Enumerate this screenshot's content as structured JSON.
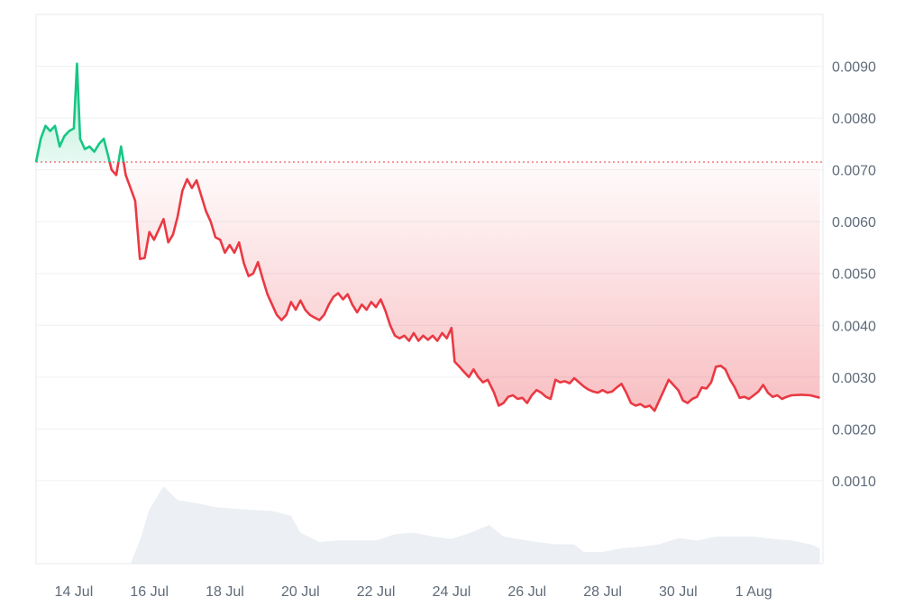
{
  "chart_data": {
    "type": "area",
    "title": "",
    "xlabel": "",
    "ylabel": "",
    "x_ticks": [
      "14 Jul",
      "16 Jul",
      "18 Jul",
      "20 Jul",
      "22 Jul",
      "24 Jul",
      "26 Jul",
      "28 Jul",
      "30 Jul",
      "1 Aug"
    ],
    "y_ticks": [
      "0.0010",
      "0.0020",
      "0.0030",
      "0.0040",
      "0.0050",
      "0.0060",
      "0.0070",
      "0.0080",
      "0.0090"
    ],
    "ylim": [
      -0.0006,
      0.01
    ],
    "xlim": [
      "2024-07-13",
      "2024-08-02T20:00"
    ],
    "y_axis_position": "right",
    "grid": true,
    "baseline": 0.00715,
    "colors": {
      "above": "#16c784",
      "below": "#ea3943",
      "volume": "#e4e8ee",
      "grid": "#eef0f3",
      "baseline": "#ea3943"
    },
    "series": [
      {
        "values": [
          [
            "2024-07-13T00:00",
            0.00715
          ],
          [
            "2024-07-13T03:00",
            0.0076
          ],
          [
            "2024-07-13T06:00",
            0.00785
          ],
          [
            "2024-07-13T09:00",
            0.00775
          ],
          [
            "2024-07-13T12:00",
            0.00785
          ],
          [
            "2024-07-13T15:00",
            0.00745
          ],
          [
            "2024-07-13T18:00",
            0.00765
          ],
          [
            "2024-07-13T21:00",
            0.00775
          ],
          [
            "2024-07-14T00:00",
            0.0078
          ],
          [
            "2024-07-14T02:00",
            0.00905
          ],
          [
            "2024-07-14T04:00",
            0.0076
          ],
          [
            "2024-07-14T07:00",
            0.0074
          ],
          [
            "2024-07-14T10:00",
            0.00745
          ],
          [
            "2024-07-14T13:00",
            0.00735
          ],
          [
            "2024-07-14T16:00",
            0.0075
          ],
          [
            "2024-07-14T19:00",
            0.0076
          ],
          [
            "2024-07-14T22:00",
            0.00725
          ],
          [
            "2024-07-15T00:00",
            0.007
          ],
          [
            "2024-07-15T03:00",
            0.0069
          ],
          [
            "2024-07-15T06:00",
            0.00745
          ],
          [
            "2024-07-15T09:00",
            0.0069
          ],
          [
            "2024-07-15T12:00",
            0.00665
          ],
          [
            "2024-07-15T15:00",
            0.0064
          ],
          [
            "2024-07-15T18:00",
            0.00528
          ],
          [
            "2024-07-15T21:00",
            0.0053
          ],
          [
            "2024-07-16T00:00",
            0.0058
          ],
          [
            "2024-07-16T03:00",
            0.00565
          ],
          [
            "2024-07-16T06:00",
            0.00585
          ],
          [
            "2024-07-16T09:00",
            0.00605
          ],
          [
            "2024-07-16T12:00",
            0.0056
          ],
          [
            "2024-07-16T15:00",
            0.00575
          ],
          [
            "2024-07-16T18:00",
            0.0061
          ],
          [
            "2024-07-16T21:00",
            0.0066
          ],
          [
            "2024-07-17T00:00",
            0.00682
          ],
          [
            "2024-07-17T03:00",
            0.00665
          ],
          [
            "2024-07-17T06:00",
            0.0068
          ],
          [
            "2024-07-17T09:00",
            0.0065
          ],
          [
            "2024-07-17T12:00",
            0.0062
          ],
          [
            "2024-07-17T15:00",
            0.006
          ],
          [
            "2024-07-17T18:00",
            0.0057
          ],
          [
            "2024-07-17T21:00",
            0.00565
          ],
          [
            "2024-07-18T00:00",
            0.0054
          ],
          [
            "2024-07-18T03:00",
            0.00555
          ],
          [
            "2024-07-18T06:00",
            0.0054
          ],
          [
            "2024-07-18T09:00",
            0.0056
          ],
          [
            "2024-07-18T12:00",
            0.0052
          ],
          [
            "2024-07-18T15:00",
            0.00495
          ],
          [
            "2024-07-18T18:00",
            0.005
          ],
          [
            "2024-07-18T21:00",
            0.00522
          ],
          [
            "2024-07-19T00:00",
            0.0049
          ],
          [
            "2024-07-19T03:00",
            0.0046
          ],
          [
            "2024-07-19T06:00",
            0.0044
          ],
          [
            "2024-07-19T09:00",
            0.0042
          ],
          [
            "2024-07-19T12:00",
            0.0041
          ],
          [
            "2024-07-19T15:00",
            0.0042
          ],
          [
            "2024-07-19T18:00",
            0.00445
          ],
          [
            "2024-07-19T21:00",
            0.0043
          ],
          [
            "2024-07-20T00:00",
            0.00448
          ],
          [
            "2024-07-20T03:00",
            0.0043
          ],
          [
            "2024-07-20T06:00",
            0.0042
          ],
          [
            "2024-07-20T09:00",
            0.00415
          ],
          [
            "2024-07-20T12:00",
            0.0041
          ],
          [
            "2024-07-20T15:00",
            0.0042
          ],
          [
            "2024-07-20T18:00",
            0.0044
          ],
          [
            "2024-07-20T21:00",
            0.00455
          ],
          [
            "2024-07-21T00:00",
            0.00462
          ],
          [
            "2024-07-21T03:00",
            0.0045
          ],
          [
            "2024-07-21T06:00",
            0.0046
          ],
          [
            "2024-07-21T09:00",
            0.0044
          ],
          [
            "2024-07-21T12:00",
            0.00425
          ],
          [
            "2024-07-21T15:00",
            0.0044
          ],
          [
            "2024-07-21T18:00",
            0.0043
          ],
          [
            "2024-07-21T21:00",
            0.00445
          ],
          [
            "2024-07-22T00:00",
            0.00435
          ],
          [
            "2024-07-22T03:00",
            0.0045
          ],
          [
            "2024-07-22T06:00",
            0.00428
          ],
          [
            "2024-07-22T09:00",
            0.004
          ],
          [
            "2024-07-22T12:00",
            0.0038
          ],
          [
            "2024-07-22T15:00",
            0.00375
          ],
          [
            "2024-07-22T18:00",
            0.0038
          ],
          [
            "2024-07-22T21:00",
            0.0037
          ],
          [
            "2024-07-23T00:00",
            0.00385
          ],
          [
            "2024-07-23T03:00",
            0.0037
          ],
          [
            "2024-07-23T06:00",
            0.0038
          ],
          [
            "2024-07-23T09:00",
            0.00372
          ],
          [
            "2024-07-23T12:00",
            0.0038
          ],
          [
            "2024-07-23T15:00",
            0.0037
          ],
          [
            "2024-07-23T18:00",
            0.00385
          ],
          [
            "2024-07-23T21:00",
            0.00375
          ],
          [
            "2024-07-24T00:00",
            0.00395
          ],
          [
            "2024-07-24T02:00",
            0.0033
          ],
          [
            "2024-07-24T05:00",
            0.0032
          ],
          [
            "2024-07-24T08:00",
            0.0031
          ],
          [
            "2024-07-24T11:00",
            0.003
          ],
          [
            "2024-07-24T14:00",
            0.00315
          ],
          [
            "2024-07-24T17:00",
            0.003
          ],
          [
            "2024-07-24T20:00",
            0.0029
          ],
          [
            "2024-07-24T23:00",
            0.00295
          ],
          [
            "2024-07-25T03:00",
            0.0027
          ],
          [
            "2024-07-25T06:00",
            0.00245
          ],
          [
            "2024-07-25T09:00",
            0.0025
          ],
          [
            "2024-07-25T12:00",
            0.00262
          ],
          [
            "2024-07-25T15:00",
            0.00265
          ],
          [
            "2024-07-25T18:00",
            0.00258
          ],
          [
            "2024-07-25T21:00",
            0.0026
          ],
          [
            "2024-07-26T00:00",
            0.0025
          ],
          [
            "2024-07-26T03:00",
            0.00265
          ],
          [
            "2024-07-26T06:00",
            0.00275
          ],
          [
            "2024-07-26T09:00",
            0.0027
          ],
          [
            "2024-07-26T12:00",
            0.00262
          ],
          [
            "2024-07-26T15:00",
            0.00258
          ],
          [
            "2024-07-26T18:00",
            0.00295
          ],
          [
            "2024-07-26T21:00",
            0.0029
          ],
          [
            "2024-07-27T00:00",
            0.00292
          ],
          [
            "2024-07-27T03:00",
            0.00288
          ],
          [
            "2024-07-27T06:00",
            0.00298
          ],
          [
            "2024-07-27T09:00",
            0.0029
          ],
          [
            "2024-07-27T12:00",
            0.00282
          ],
          [
            "2024-07-27T15:00",
            0.00276
          ],
          [
            "2024-07-27T18:00",
            0.00272
          ],
          [
            "2024-07-27T21:00",
            0.0027
          ],
          [
            "2024-07-28T00:00",
            0.00275
          ],
          [
            "2024-07-28T03:00",
            0.0027
          ],
          [
            "2024-07-28T06:00",
            0.00272
          ],
          [
            "2024-07-28T09:00",
            0.0028
          ],
          [
            "2024-07-28T12:00",
            0.00287
          ],
          [
            "2024-07-28T15:00",
            0.0027
          ],
          [
            "2024-07-28T18:00",
            0.0025
          ],
          [
            "2024-07-28T21:00",
            0.00245
          ],
          [
            "2024-07-29T00:00",
            0.00248
          ],
          [
            "2024-07-29T03:00",
            0.00242
          ],
          [
            "2024-07-29T06:00",
            0.00245
          ],
          [
            "2024-07-29T09:00",
            0.00235
          ],
          [
            "2024-07-29T12:00",
            0.00255
          ],
          [
            "2024-07-29T15:00",
            0.00275
          ],
          [
            "2024-07-29T18:00",
            0.00295
          ],
          [
            "2024-07-29T21:00",
            0.00285
          ],
          [
            "2024-07-30T00:00",
            0.00275
          ],
          [
            "2024-07-30T03:00",
            0.00255
          ],
          [
            "2024-07-30T06:00",
            0.0025
          ],
          [
            "2024-07-30T09:00",
            0.00258
          ],
          [
            "2024-07-30T12:00",
            0.00262
          ],
          [
            "2024-07-30T15:00",
            0.0028
          ],
          [
            "2024-07-30T18:00",
            0.00278
          ],
          [
            "2024-07-30T21:00",
            0.0029
          ],
          [
            "2024-07-31T00:00",
            0.0032
          ],
          [
            "2024-07-31T03:00",
            0.00322
          ],
          [
            "2024-07-31T06:00",
            0.00315
          ],
          [
            "2024-07-31T09:00",
            0.00295
          ],
          [
            "2024-07-31T12:00",
            0.0028
          ],
          [
            "2024-07-31T15:00",
            0.0026
          ],
          [
            "2024-07-31T18:00",
            0.00262
          ],
          [
            "2024-07-31T21:00",
            0.00258
          ],
          [
            "2024-08-01T00:00",
            0.00265
          ],
          [
            "2024-08-01T03:00",
            0.00272
          ],
          [
            "2024-08-01T06:00",
            0.00285
          ],
          [
            "2024-08-01T09:00",
            0.0027
          ],
          [
            "2024-08-01T12:00",
            0.00262
          ],
          [
            "2024-08-01T15:00",
            0.00265
          ],
          [
            "2024-08-01T18:00",
            0.00258
          ],
          [
            "2024-08-01T21:00",
            0.00262
          ],
          [
            "2024-08-02T00:00",
            0.00265
          ],
          [
            "2024-08-02T06:00",
            0.00266
          ],
          [
            "2024-08-02T12:00",
            0.00265
          ],
          [
            "2024-08-02T18:00",
            0.0026
          ]
        ]
      }
    ],
    "volume": [
      [
        "2024-07-15T12:00",
        0.0
      ],
      [
        "2024-07-15T18:00",
        0.3
      ],
      [
        "2024-07-16T00:00",
        0.7
      ],
      [
        "2024-07-16T09:00",
        1.0
      ],
      [
        "2024-07-16T18:00",
        0.82
      ],
      [
        "2024-07-17T06:00",
        0.78
      ],
      [
        "2024-07-17T18:00",
        0.73
      ],
      [
        "2024-07-18T12:00",
        0.7
      ],
      [
        "2024-07-19T06:00",
        0.68
      ],
      [
        "2024-07-19T18:00",
        0.62
      ],
      [
        "2024-07-20T00:00",
        0.4
      ],
      [
        "2024-07-20T12:00",
        0.28
      ],
      [
        "2024-07-21T00:00",
        0.3
      ],
      [
        "2024-07-21T12:00",
        0.3
      ],
      [
        "2024-07-22T00:00",
        0.3
      ],
      [
        "2024-07-22T12:00",
        0.38
      ],
      [
        "2024-07-23T00:00",
        0.4
      ],
      [
        "2024-07-23T12:00",
        0.35
      ],
      [
        "2024-07-24T00:00",
        0.32
      ],
      [
        "2024-07-24T12:00",
        0.4
      ],
      [
        "2024-07-25T00:00",
        0.5
      ],
      [
        "2024-07-25T09:00",
        0.35
      ],
      [
        "2024-07-25T18:00",
        0.32
      ],
      [
        "2024-07-26T06:00",
        0.28
      ],
      [
        "2024-07-26T18:00",
        0.25
      ],
      [
        "2024-07-27T06:00",
        0.25
      ],
      [
        "2024-07-27T12:00",
        0.15
      ],
      [
        "2024-07-28T00:00",
        0.15
      ],
      [
        "2024-07-28T12:00",
        0.2
      ],
      [
        "2024-07-29T00:00",
        0.22
      ],
      [
        "2024-07-29T12:00",
        0.25
      ],
      [
        "2024-07-30T00:00",
        0.33
      ],
      [
        "2024-07-30T12:00",
        0.3
      ],
      [
        "2024-07-31T00:00",
        0.35
      ],
      [
        "2024-07-31T12:00",
        0.35
      ],
      [
        "2024-08-01T00:00",
        0.35
      ],
      [
        "2024-08-01T12:00",
        0.32
      ],
      [
        "2024-08-02T00:00",
        0.3
      ],
      [
        "2024-08-02T12:00",
        0.25
      ],
      [
        "2024-08-02T18:00",
        0.2
      ]
    ]
  }
}
